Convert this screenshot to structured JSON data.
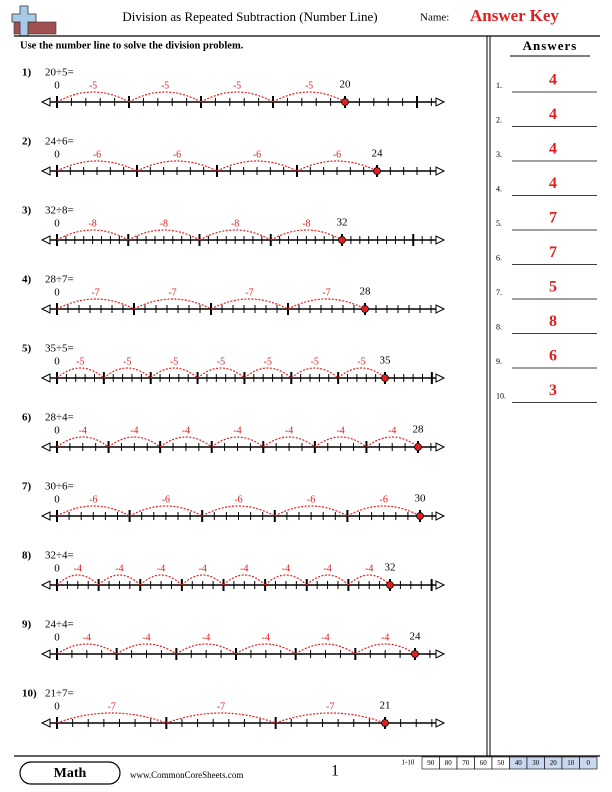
{
  "header": {
    "title": "Division as Repeated Subtraction (Number Line)",
    "name_label": "Name:",
    "answer_key": "Answer Key"
  },
  "instructions": "Use the number line to solve the division problem.",
  "problems": [
    {
      "number": "1)",
      "question": "20÷5=",
      "start": "0",
      "end": "20",
      "jump": "-5"
    },
    {
      "number": "2)",
      "question": "24÷6=",
      "start": "0",
      "end": "24",
      "jump": "-6"
    },
    {
      "number": "3)",
      "question": "32÷8=",
      "start": "0",
      "end": "32",
      "jump": "-8"
    },
    {
      "number": "4)",
      "question": "28÷7=",
      "start": "0",
      "end": "28",
      "jump": "-7"
    },
    {
      "number": "5)",
      "question": "35÷5=",
      "start": "0",
      "end": "35",
      "jump": "-5"
    },
    {
      "number": "6)",
      "question": "28÷4=",
      "start": "0",
      "end": "28",
      "jump": "-4"
    },
    {
      "number": "7)",
      "question": "30÷6=",
      "start": "0",
      "end": "30",
      "jump": "-6"
    },
    {
      "number": "8)",
      "question": "32÷4=",
      "start": "0",
      "end": "32",
      "jump": "-4"
    },
    {
      "number": "9)",
      "question": "24÷4=",
      "start": "0",
      "end": "24",
      "jump": "-4"
    },
    {
      "number": "10)",
      "question": "21÷7=",
      "start": "0",
      "end": "21",
      "jump": "-7"
    }
  ],
  "answers": {
    "title": "Answers",
    "items": [
      {
        "number": "1.",
        "answer": "4"
      },
      {
        "number": "2.",
        "answer": "4"
      },
      {
        "number": "3.",
        "answer": "4"
      },
      {
        "number": "4.",
        "answer": "4"
      },
      {
        "number": "5.",
        "answer": "7"
      },
      {
        "number": "6.",
        "answer": "7"
      },
      {
        "number": "7.",
        "answer": "5"
      },
      {
        "number": "8.",
        "answer": "8"
      },
      {
        "number": "9.",
        "answer": "6"
      },
      {
        "number": "10.",
        "answer": "3"
      }
    ]
  },
  "footer": {
    "brand": "Math",
    "url": "www.CommonCoreSheets.com",
    "page": "1",
    "score_range": "1-10",
    "scores": [
      "90",
      "80",
      "70",
      "60",
      "50",
      "40",
      "30",
      "20",
      "10",
      "0"
    ]
  }
}
